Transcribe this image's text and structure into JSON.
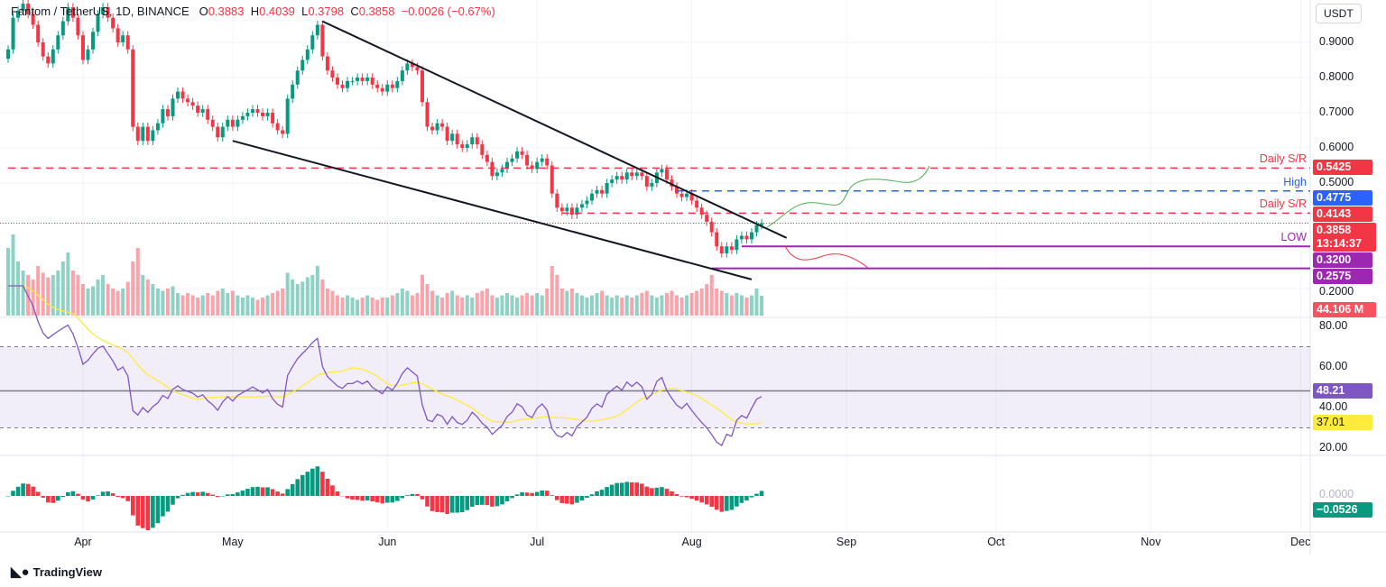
{
  "header": {
    "symbol": "Fantom / TetherUS, 1D, BINANCE",
    "o_label": "O",
    "o": "0.3883",
    "h_label": "H",
    "h": "0.4039",
    "l_label": "L",
    "l": "0.3798",
    "c_label": "C",
    "c": "0.3858",
    "change": "−0.0026 (−0.67%)"
  },
  "currency": "USDT",
  "brand": "TradingView",
  "colors": {
    "up": "#089981",
    "down": "#f23645",
    "resistance": "#f23645",
    "high": "#2962ff",
    "support": "#9c27b0",
    "rsi": "#7e57c2",
    "rsi_ma": "#ffeb3b",
    "macd_up": "#089981",
    "macd_down": "#f23645"
  },
  "chart_data": {
    "type": "candlestick",
    "start_date": "2024-03-17",
    "price_ticks": [
      "0.9000",
      "0.8000",
      "0.7000",
      "0.6000",
      "0.5000",
      "0.2000"
    ],
    "price_tick_values": [
      0.9,
      0.8,
      0.7,
      0.6,
      0.5,
      0.2
    ],
    "time_ticks": [
      "Apr",
      "May",
      "Jun",
      "Jul",
      "Aug",
      "Sep",
      "Oct",
      "Nov",
      "Dec"
    ],
    "time_tick_dates": [
      "2024-04-01",
      "2024-05-01",
      "2024-06-01",
      "2024-07-01",
      "2024-08-01",
      "2024-09-01",
      "2024-10-01",
      "2024-11-01",
      "2024-12-01"
    ],
    "closes": [
      0.88,
      0.97,
      0.99,
      1.01,
      0.98,
      0.95,
      0.9,
      0.86,
      0.84,
      0.88,
      0.92,
      0.96,
      1.0,
      0.97,
      0.92,
      0.85,
      0.88,
      0.93,
      0.98,
      1.0,
      0.97,
      0.94,
      0.9,
      0.92,
      0.88,
      0.66,
      0.62,
      0.66,
      0.62,
      0.65,
      0.67,
      0.71,
      0.69,
      0.74,
      0.76,
      0.74,
      0.73,
      0.72,
      0.7,
      0.71,
      0.68,
      0.66,
      0.63,
      0.66,
      0.68,
      0.66,
      0.68,
      0.69,
      0.7,
      0.71,
      0.7,
      0.69,
      0.7,
      0.67,
      0.65,
      0.64,
      0.74,
      0.78,
      0.82,
      0.85,
      0.88,
      0.92,
      0.95,
      0.86,
      0.82,
      0.8,
      0.78,
      0.77,
      0.79,
      0.79,
      0.8,
      0.79,
      0.8,
      0.78,
      0.77,
      0.76,
      0.78,
      0.77,
      0.79,
      0.82,
      0.84,
      0.83,
      0.82,
      0.73,
      0.66,
      0.65,
      0.67,
      0.66,
      0.62,
      0.64,
      0.61,
      0.6,
      0.61,
      0.63,
      0.61,
      0.58,
      0.56,
      0.52,
      0.53,
      0.54,
      0.56,
      0.57,
      0.59,
      0.58,
      0.55,
      0.54,
      0.56,
      0.57,
      0.55,
      0.47,
      0.43,
      0.42,
      0.43,
      0.41,
      0.43,
      0.44,
      0.45,
      0.47,
      0.48,
      0.47,
      0.5,
      0.51,
      0.52,
      0.51,
      0.53,
      0.52,
      0.53,
      0.52,
      0.49,
      0.5,
      0.53,
      0.54,
      0.51,
      0.49,
      0.47,
      0.46,
      0.47,
      0.45,
      0.43,
      0.41,
      0.39,
      0.36,
      0.32,
      0.3,
      0.32,
      0.31,
      0.34,
      0.35,
      0.34,
      0.36,
      0.38,
      0.3858
    ],
    "volume_millions": [
      150,
      180,
      120,
      100,
      90,
      80,
      110,
      95,
      85,
      90,
      100,
      120,
      140,
      100,
      90,
      70,
      60,
      65,
      80,
      90,
      70,
      60,
      55,
      60,
      75,
      120,
      150,
      90,
      80,
      70,
      60,
      55,
      60,
      65,
      50,
      45,
      50,
      45,
      40,
      45,
      50,
      45,
      55,
      60,
      50,
      55,
      45,
      40,
      45,
      40,
      35,
      40,
      45,
      50,
      55,
      60,
      95,
      80,
      70,
      75,
      85,
      90,
      110,
      80,
      60,
      55,
      45,
      40,
      45,
      40,
      35,
      40,
      45,
      40,
      35,
      40,
      40,
      45,
      50,
      60,
      55,
      45,
      50,
      90,
      70,
      55,
      45,
      40,
      50,
      55,
      45,
      40,
      45,
      40,
      50,
      55,
      60,
      45,
      40,
      45,
      50,
      45,
      40,
      45,
      50,
      45,
      50,
      45,
      60,
      110,
      90,
      60,
      55,
      60,
      50,
      45,
      40,
      45,
      50,
      55,
      45,
      40,
      45,
      40,
      45,
      40,
      45,
      50,
      55,
      45,
      40,
      45,
      50,
      55,
      45,
      40,
      45,
      50,
      55,
      60,
      70,
      90,
      60,
      55,
      50,
      45,
      50,
      45,
      40,
      45,
      60,
      44.106
    ],
    "levels": [
      {
        "label": "Daily S/R",
        "value": 0.5425,
        "text": "0.5425",
        "style": "dashed",
        "color": "#f23645",
        "from": "2024-03-17"
      },
      {
        "label": "High",
        "value": 0.4775,
        "text": "0.4775",
        "style": "dashed",
        "color": "#2962ff",
        "from": "2024-07-29"
      },
      {
        "label": "Daily S/R",
        "value": 0.4143,
        "text": "0.4143",
        "style": "dashed",
        "color": "#f23645",
        "from": "2024-07-06"
      },
      {
        "label": "LOW",
        "value": 0.32,
        "text": "0.3200",
        "style": "solid",
        "color": "#9c27b0",
        "from": "2024-08-11"
      },
      {
        "label": "",
        "value": 0.2575,
        "text": "0.2575",
        "style": "solid",
        "color": "#9c27b0",
        "from": "2024-08-05"
      }
    ],
    "trendlines": [
      {
        "from": [
          "2024-05-19",
          0.96
        ],
        "to": [
          "2024-08-20",
          0.344
        ]
      },
      {
        "from": [
          "2024-05-01",
          0.62
        ],
        "to": [
          "2024-08-13",
          0.226
        ]
      }
    ],
    "last_price": "0.3858",
    "countdown": "13:14:37",
    "last_volume": "44.106 M",
    "rsi": {
      "ticks": [
        "80.00",
        "60.00",
        "40.00",
        "20.00"
      ],
      "tick_values": [
        80,
        60,
        40,
        20
      ],
      "upper": 70,
      "lower": 30,
      "value": "48.21",
      "ma_value": "37.01"
    },
    "macd": {
      "tick": "0.0000",
      "value": "−0.0526"
    }
  }
}
